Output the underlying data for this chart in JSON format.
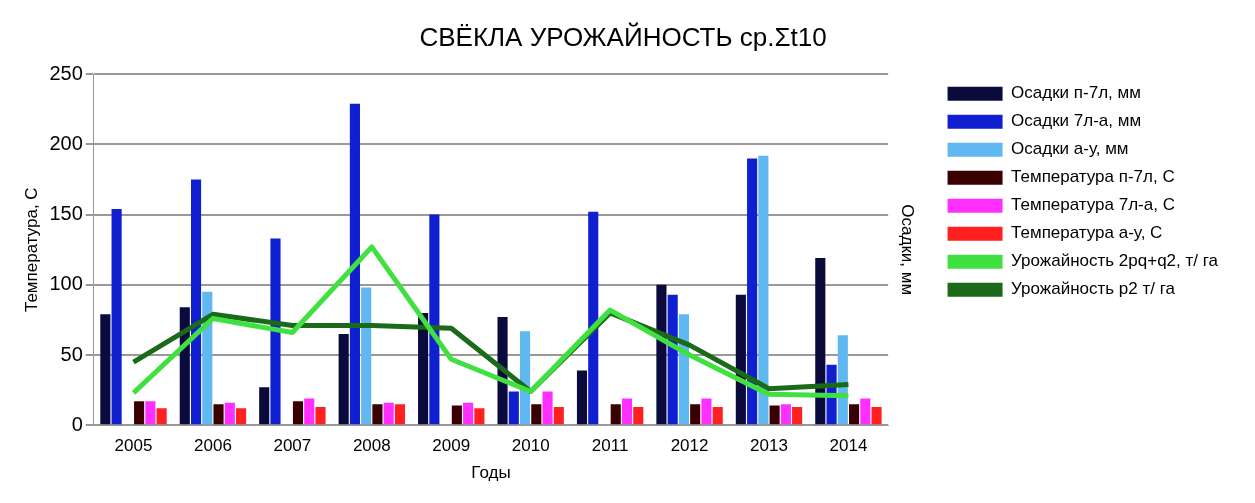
{
  "chart_data": {
    "type": "bar",
    "title": "СВЁКЛА УРОЖАЙНОСТЬ ср.Σt10",
    "xlabel": "Годы",
    "ylabel": "Температура, С",
    "y2label": "Осадки, мм",
    "categories": [
      "2005",
      "2006",
      "2007",
      "2008",
      "2009",
      "2010",
      "2011",
      "2012",
      "2013",
      "2014"
    ],
    "series": [
      {
        "name": "Осадки п-7л, мм",
        "color": "#0a0a3c",
        "values": [
          79,
          84,
          27,
          65,
          80,
          77,
          39,
          100,
          93,
          119
        ]
      },
      {
        "name": "Осадки 7л-а, мм",
        "color": "#1020d0",
        "values": [
          154,
          175,
          133,
          229,
          150,
          24,
          152,
          93,
          190,
          43
        ]
      },
      {
        "name": "Осадки а-у, мм",
        "color": "#60b8f0",
        "values": [
          null,
          95,
          null,
          98,
          null,
          67,
          null,
          79,
          192,
          64
        ]
      },
      {
        "name": "Температура п-7л, С",
        "color": "#3a0000",
        "values": [
          17,
          15,
          17,
          15,
          14,
          15,
          15,
          15,
          14,
          15
        ]
      },
      {
        "name": "Температура 7л-а, С",
        "color": "#ff30ff",
        "values": [
          17,
          16,
          19,
          16,
          16,
          24,
          19,
          19,
          15,
          19
        ]
      },
      {
        "name": "Температура а-у, С",
        "color": "#ff2020",
        "values": [
          12,
          12,
          13,
          15,
          12,
          13,
          13,
          13,
          13,
          13
        ]
      },
      {
        "name": "Урожайность 2pq+q2, т/ га",
        "type": "line",
        "color": "#40e040",
        "values": [
          23,
          76,
          66,
          127,
          47,
          24,
          82,
          50,
          22,
          21
        ]
      },
      {
        "name": "Урожайность p2 т/ га",
        "type": "line",
        "color": "#1a6a1a",
        "values": [
          45,
          79,
          71,
          71,
          69,
          24,
          80,
          57,
          26,
          29
        ]
      }
    ],
    "ylim": [
      0,
      250
    ],
    "yticks": [
      0,
      50,
      100,
      150,
      200,
      250
    ],
    "grid": "y",
    "legend": "right",
    "marker": "none"
  }
}
